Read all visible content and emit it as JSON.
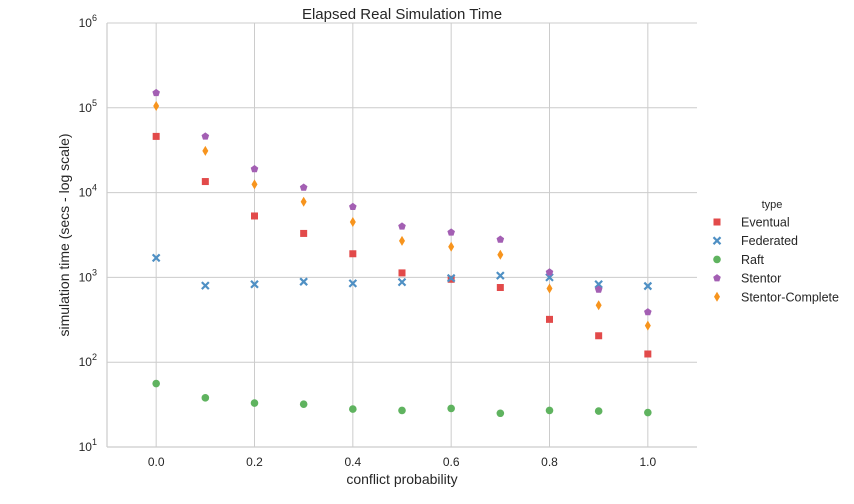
{
  "chart_data": {
    "type": "scatter",
    "title": "Elapsed Real Simulation Time",
    "xlabel": "conflict probability",
    "ylabel": "simulation time (secs - log scale)",
    "yscale": "log",
    "xlim": [
      -0.1,
      1.1
    ],
    "ylim": [
      10,
      1000000
    ],
    "xticks": [
      0.0,
      0.2,
      0.4,
      0.6,
      0.8,
      1.0
    ],
    "xtick_labels": [
      "0.0",
      "0.2",
      "0.4",
      "0.6",
      "0.8",
      "1.0"
    ],
    "yticks": [
      {
        "value": 10,
        "base": "10",
        "exp": "1"
      },
      {
        "value": 100,
        "base": "10",
        "exp": "2"
      },
      {
        "value": 1000,
        "base": "10",
        "exp": "3"
      },
      {
        "value": 10000,
        "base": "10",
        "exp": "4"
      },
      {
        "value": 100000,
        "base": "10",
        "exp": "5"
      },
      {
        "value": 1000000,
        "base": "10",
        "exp": "6"
      }
    ],
    "grid": true,
    "legend": {
      "title": "type",
      "placement": "right"
    },
    "x": [
      0.0,
      0.1,
      0.2,
      0.3,
      0.4,
      0.5,
      0.6,
      0.7,
      0.8,
      0.9,
      1.0
    ],
    "series": [
      {
        "name": "Eventual",
        "marker": "square",
        "color": "#e24a4a",
        "values": [
          46000,
          13500,
          5300,
          3300,
          1900,
          1130,
          950,
          760,
          320,
          205,
          125
        ]
      },
      {
        "name": "Federated",
        "marker": "x",
        "color": "#4f90c4",
        "values": [
          1700,
          800,
          830,
          890,
          850,
          880,
          980,
          1050,
          1000,
          830,
          790
        ]
      },
      {
        "name": "Raft",
        "marker": "circle",
        "color": "#5fb35f",
        "values": [
          56,
          38,
          33,
          32,
          28,
          27,
          28.5,
          25,
          27,
          26.5,
          25.5
        ]
      },
      {
        "name": "Stentor",
        "marker": "pentagon",
        "color": "#a35fb3",
        "values": [
          150000,
          46000,
          19000,
          11500,
          6800,
          4000,
          3400,
          2800,
          1150,
          720,
          390
        ]
      },
      {
        "name": "Stentor-Complete",
        "marker": "diamond",
        "color": "#f7941d",
        "values": [
          105000,
          31000,
          12500,
          7800,
          4500,
          2700,
          2300,
          1850,
          740,
          470,
          270
        ]
      }
    ]
  }
}
